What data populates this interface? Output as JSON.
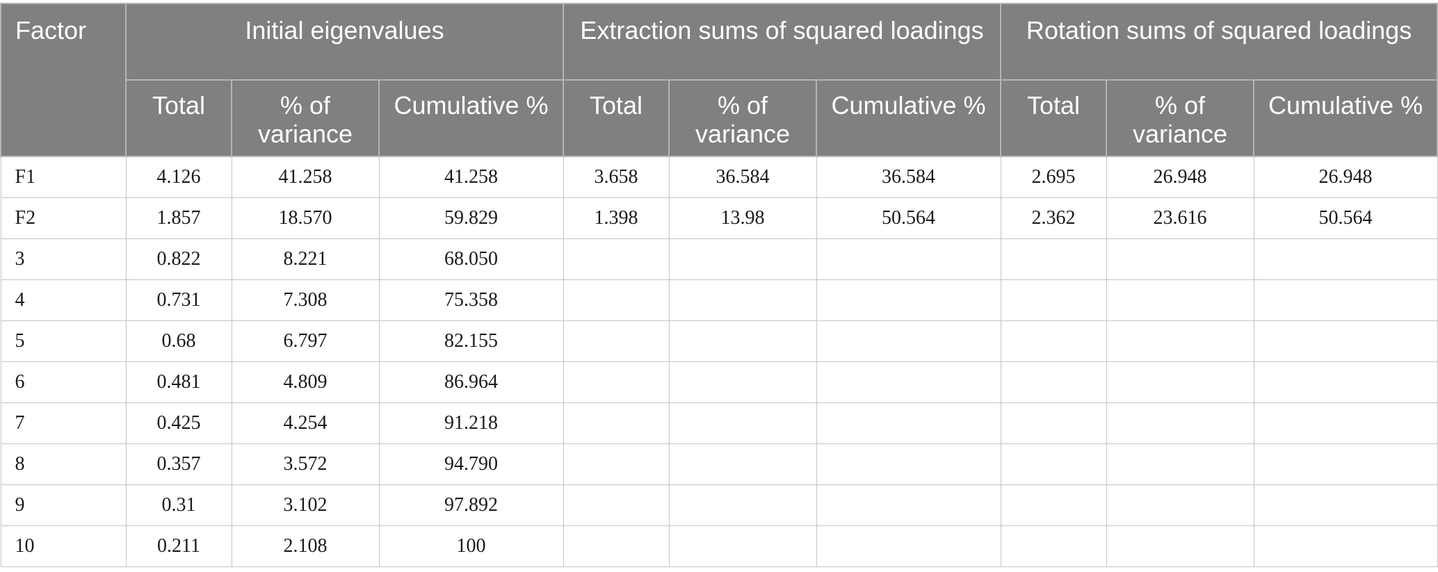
{
  "table": {
    "header": {
      "factor": "Factor",
      "groups": [
        "Initial eigenvalues",
        "Extraction sums of squared loadings",
        "Rotation sums of squared loadings"
      ],
      "subheaders": [
        "Total",
        "% of variance",
        "Cumulative %",
        "Total",
        "% of variance",
        "Cumulative %",
        "Total",
        "% of variance",
        "Cumulative %"
      ]
    },
    "rows": [
      [
        "F1",
        "4.126",
        "41.258",
        "41.258",
        "3.658",
        "36.584",
        "36.584",
        "2.695",
        "26.948",
        "26.948"
      ],
      [
        "F2",
        "1.857",
        "18.570",
        "59.829",
        "1.398",
        "13.98",
        "50.564",
        "2.362",
        "23.616",
        "50.564"
      ],
      [
        "3",
        "0.822",
        "8.221",
        "68.050",
        "",
        "",
        "",
        "",
        "",
        ""
      ],
      [
        "4",
        "0.731",
        "7.308",
        "75.358",
        "",
        "",
        "",
        "",
        "",
        ""
      ],
      [
        "5",
        "0.68",
        "6.797",
        "82.155",
        "",
        "",
        "",
        "",
        "",
        ""
      ],
      [
        "6",
        "0.481",
        "4.809",
        "86.964",
        "",
        "",
        "",
        "",
        "",
        ""
      ],
      [
        "7",
        "0.425",
        "4.254",
        "91.218",
        "",
        "",
        "",
        "",
        "",
        ""
      ],
      [
        "8",
        "0.357",
        "3.572",
        "94.790",
        "",
        "",
        "",
        "",
        "",
        ""
      ],
      [
        "9",
        "0.31",
        "3.102",
        "97.892",
        "",
        "",
        "",
        "",
        "",
        ""
      ],
      [
        "10",
        "0.211",
        "2.108",
        "100",
        "",
        "",
        "",
        "",
        "",
        ""
      ]
    ]
  }
}
